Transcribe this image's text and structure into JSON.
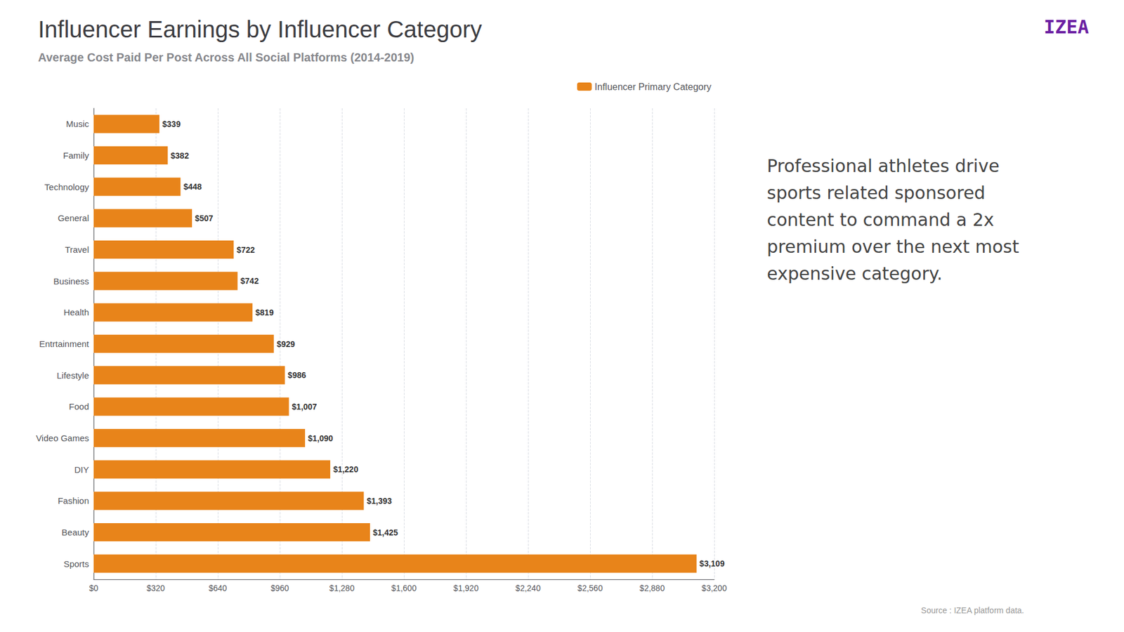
{
  "chart_data": {
    "type": "bar",
    "orientation": "horizontal",
    "title": "Influencer Earnings by Influencer Category",
    "subtitle": "Average Cost Paid Per Post Across All Social Platforms (2014-2019)",
    "categories": [
      "Sports",
      "Beauty",
      "Fashion",
      "DIY",
      "Video Games",
      "Food",
      "Lifestyle",
      "Entrtainment",
      "Health",
      "Business",
      "Travel",
      "General",
      "Technology",
      "Family",
      "Music"
    ],
    "series": [
      {
        "name": "Influencer Primary Category",
        "color": "#E8841A",
        "values": [
          3109,
          1425,
          1393,
          1220,
          1090,
          1007,
          986,
          929,
          819,
          742,
          722,
          507,
          448,
          382,
          339
        ],
        "value_labels": [
          "$3,109",
          "$1,425",
          "$1,393",
          "$1,220",
          "$1,090",
          "$1,007",
          "$986",
          "$929",
          "$819",
          "$742",
          "$722",
          "$507",
          "$448",
          "$382",
          "$339"
        ]
      }
    ],
    "data_labels": true,
    "xlim": [
      0,
      3200
    ],
    "xticks": [
      {
        "value": 0,
        "label": "$0"
      },
      {
        "value": 320,
        "label": "$320"
      },
      {
        "value": 640,
        "label": "$640"
      },
      {
        "value": 960,
        "label": "$960"
      },
      {
        "value": 1280,
        "label": "$1,280"
      },
      {
        "value": 1600,
        "label": "$1,600"
      },
      {
        "value": 1920,
        "label": "$1,920"
      },
      {
        "value": 2240,
        "label": "$2,240"
      },
      {
        "value": 2560,
        "label": "$2,560"
      },
      {
        "value": 2880,
        "label": "$2,880"
      },
      {
        "value": 3200,
        "label": "$3,200"
      }
    ],
    "grid": true,
    "legend": "upper right",
    "annotations": [
      "Professional athletes drive sports related sponsored content to command a 2x premium over the next most expensive category.",
      "Source : IZEA platform data.",
      "IZEA"
    ]
  }
}
